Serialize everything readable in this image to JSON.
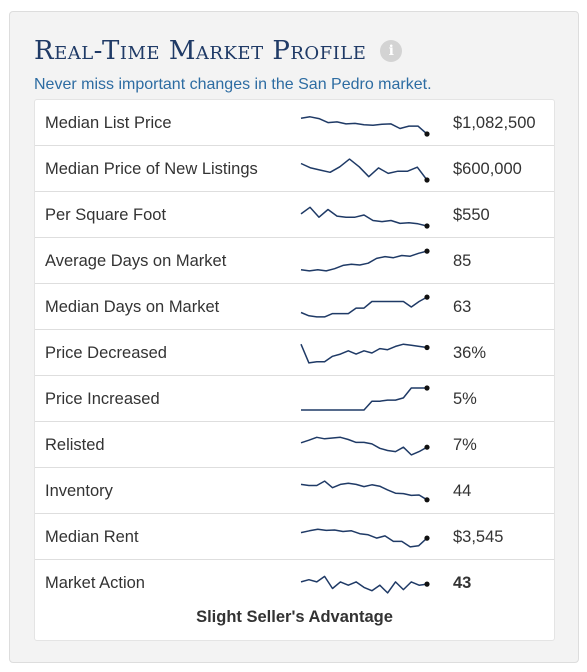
{
  "header": {
    "title": "Real-Time Market Profile",
    "subtitle": "Never miss important changes in the San Pedro market."
  },
  "colors": {
    "title": "#1f3a66",
    "subtitle": "#2d6ca2",
    "sparkline": "#1f3a66",
    "panel_bg": "#f3f3f3"
  },
  "icons": {
    "info": "info-icon"
  },
  "metrics": [
    {
      "label": "Median List Price",
      "value": "$1,082,500",
      "bold": false,
      "trend": [
        0.72,
        0.78,
        0.7,
        0.52,
        0.55,
        0.46,
        0.48,
        0.42,
        0.4,
        0.44,
        0.46,
        0.25,
        0.36,
        0.36,
        0.0
      ]
    },
    {
      "label": "Median Price of New Listings",
      "value": "$600,000",
      "bold": false,
      "trend": [
        0.75,
        0.55,
        0.45,
        0.35,
        0.6,
        0.95,
        0.6,
        0.15,
        0.55,
        0.3,
        0.4,
        0.4,
        0.58,
        0.0
      ]
    },
    {
      "label": "Per Square Foot",
      "value": "$550",
      "bold": false,
      "trend": [
        0.55,
        0.85,
        0.4,
        0.75,
        0.45,
        0.4,
        0.4,
        0.5,
        0.25,
        0.2,
        0.25,
        0.12,
        0.15,
        0.1,
        0.0
      ]
    },
    {
      "label": "Average Days on Market",
      "value": "85",
      "bold": false,
      "trend": [
        0.1,
        0.05,
        0.1,
        0.05,
        0.15,
        0.3,
        0.35,
        0.32,
        0.4,
        0.62,
        0.7,
        0.65,
        0.75,
        0.72,
        0.85,
        0.95
      ]
    },
    {
      "label": "Median Days on Market",
      "value": "63",
      "bold": false,
      "trend": [
        0.25,
        0.1,
        0.05,
        0.05,
        0.2,
        0.2,
        0.2,
        0.45,
        0.45,
        0.75,
        0.75,
        0.75,
        0.75,
        0.75,
        0.5,
        0.75,
        0.95
      ]
    },
    {
      "label": "Price Decreased",
      "value": "36%",
      "bold": false,
      "trend": [
        0.9,
        0.05,
        0.1,
        0.1,
        0.35,
        0.45,
        0.6,
        0.45,
        0.6,
        0.5,
        0.7,
        0.65,
        0.8,
        0.9,
        0.85,
        0.8,
        0.75
      ]
    },
    {
      "label": "Price Increased",
      "value": "5%",
      "bold": false,
      "trend": [
        0.0,
        0.0,
        0.0,
        0.0,
        0.0,
        0.0,
        0.0,
        0.0,
        0.0,
        0.4,
        0.4,
        0.45,
        0.45,
        0.55,
        1.0,
        1.0,
        1.0
      ]
    },
    {
      "label": "Relisted",
      "value": "7%",
      "bold": false,
      "trend": [
        0.6,
        0.72,
        0.85,
        0.78,
        0.82,
        0.85,
        0.75,
        0.62,
        0.62,
        0.55,
        0.35,
        0.25,
        0.2,
        0.4,
        0.05,
        0.2,
        0.4
      ]
    },
    {
      "label": "Inventory",
      "value": "44",
      "bold": false,
      "trend": [
        0.8,
        0.75,
        0.75,
        0.95,
        0.65,
        0.8,
        0.85,
        0.8,
        0.7,
        0.78,
        0.72,
        0.55,
        0.4,
        0.38,
        0.3,
        0.32,
        0.1
      ]
    },
    {
      "label": "Median Rent",
      "value": "$3,545",
      "bold": false,
      "trend": [
        0.7,
        0.78,
        0.85,
        0.8,
        0.82,
        0.75,
        0.78,
        0.65,
        0.6,
        0.45,
        0.55,
        0.3,
        0.3,
        0.05,
        0.1,
        0.45
      ]
    },
    {
      "label": "Market Action",
      "value": "43",
      "bold": true,
      "trend": [
        0.55,
        0.65,
        0.55,
        0.8,
        0.25,
        0.55,
        0.4,
        0.55,
        0.3,
        0.15,
        0.4,
        0.05,
        0.55,
        0.2,
        0.55,
        0.4,
        0.45
      ]
    }
  ],
  "footer": {
    "verdict": "Slight Seller's Advantage"
  }
}
